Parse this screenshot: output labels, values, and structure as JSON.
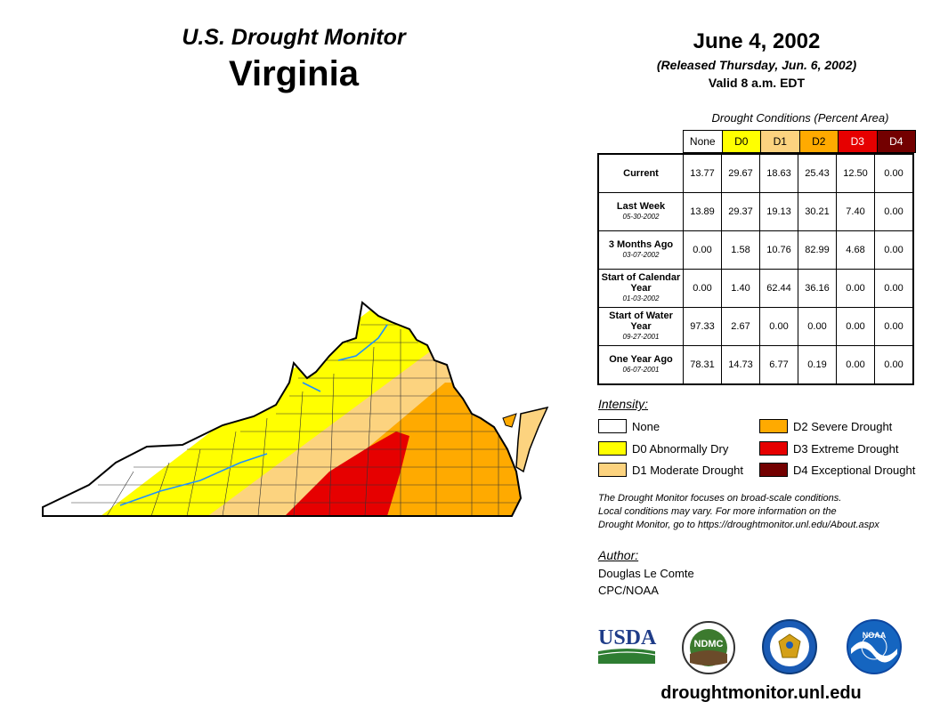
{
  "header": {
    "monitor_title": "U.S. Drought Monitor",
    "state": "Virginia",
    "date": "June 4, 2002",
    "released": "(Released Thursday, Jun. 6, 2002)",
    "valid": "Valid 8 a.m. EDT"
  },
  "table": {
    "caption": "Drought Conditions (Percent Area)",
    "categories": [
      {
        "label": "None",
        "color": "#ffffff",
        "text_color": "#000000"
      },
      {
        "label": "D0",
        "color": "#ffff00",
        "text_color": "#000000"
      },
      {
        "label": "D1",
        "color": "#fcd37f",
        "text_color": "#000000"
      },
      {
        "label": "D2",
        "color": "#ffaa00",
        "text_color": "#000000"
      },
      {
        "label": "D3",
        "color": "#e60000",
        "text_color": "#ffffff"
      },
      {
        "label": "D4",
        "color": "#730000",
        "text_color": "#ffffff"
      }
    ],
    "rows": [
      {
        "label": "Current",
        "date": "",
        "values": [
          "13.77",
          "29.67",
          "18.63",
          "25.43",
          "12.50",
          "0.00"
        ]
      },
      {
        "label": "Last Week",
        "date": "05-30-2002",
        "values": [
          "13.89",
          "29.37",
          "19.13",
          "30.21",
          "7.40",
          "0.00"
        ]
      },
      {
        "label": "3 Months Ago",
        "date": "03-07-2002",
        "values": [
          "0.00",
          "1.58",
          "10.76",
          "82.99",
          "4.68",
          "0.00"
        ]
      },
      {
        "label": "Start of Calendar Year",
        "date": "01-03-2002",
        "values": [
          "0.00",
          "1.40",
          "62.44",
          "36.16",
          "0.00",
          "0.00"
        ]
      },
      {
        "label": "Start of Water Year",
        "date": "09-27-2001",
        "values": [
          "97.33",
          "2.67",
          "0.00",
          "0.00",
          "0.00",
          "0.00"
        ]
      },
      {
        "label": "One Year Ago",
        "date": "06-07-2001",
        "values": [
          "78.31",
          "14.73",
          "6.77",
          "0.19",
          "0.00",
          "0.00"
        ]
      }
    ]
  },
  "legend": {
    "title": "Intensity:",
    "items": [
      {
        "label": "None",
        "color": "#ffffff"
      },
      {
        "label": "D0 Abnormally Dry",
        "color": "#ffff00"
      },
      {
        "label": "D1 Moderate Drought",
        "color": "#fcd37f"
      },
      {
        "label": "D2 Severe Drought",
        "color": "#ffaa00"
      },
      {
        "label": "D3 Extreme Drought",
        "color": "#e60000"
      },
      {
        "label": "D4 Exceptional Drought",
        "color": "#730000"
      }
    ]
  },
  "note": {
    "line1": "The Drought Monitor focuses on broad-scale conditions.",
    "line2": "Local conditions may vary. For more information on the",
    "line3": "Drought Monitor, go to https://droughtmonitor.unl.edu/About.aspx"
  },
  "author": {
    "title": "Author:",
    "name": "Douglas Le Comte",
    "org": "CPC/NOAA"
  },
  "logos": {
    "usda": "USDA",
    "ndmc": "NDMC",
    "noaa": "NOAA"
  },
  "website": "droughtmonitor.unl.edu"
}
